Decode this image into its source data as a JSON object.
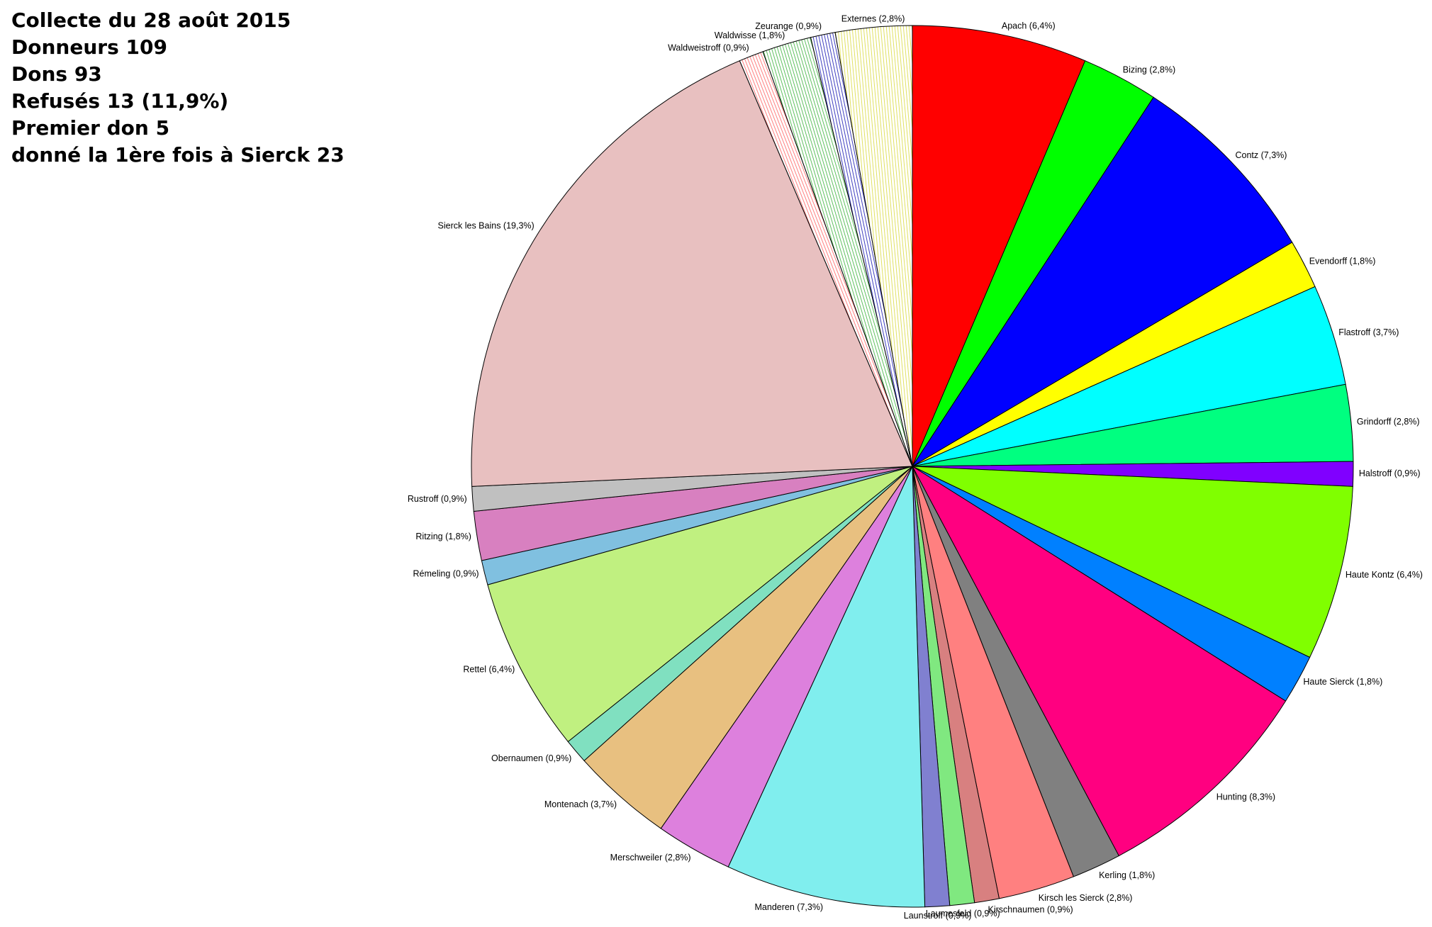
{
  "stats": {
    "line1": "Collecte du 28 août 2015",
    "line2": "Donneurs 109",
    "line3": "Dons 93",
    "line4": "Refusés 13 (11,9%)",
    "line5": "Premier don 5",
    "line6": "donné la 1ère fois à Sierck 23"
  },
  "chart_data": {
    "type": "pie",
    "title": "",
    "start": "12 o'clock",
    "direction": "clockwise",
    "slices": [
      {
        "label": "Apach (6,4%)",
        "value": 6.4,
        "color": "#ff0000",
        "pattern": "solid"
      },
      {
        "label": "Bizing (2,8%)",
        "value": 2.8,
        "color": "#00ff00",
        "pattern": "solid"
      },
      {
        "label": "Contz (7,3%)",
        "value": 7.3,
        "color": "#0000ff",
        "pattern": "solid"
      },
      {
        "label": "Evendorff (1,8%)",
        "value": 1.8,
        "color": "#ffff00",
        "pattern": "solid"
      },
      {
        "label": "Flastroff (3,7%)",
        "value": 3.7,
        "color": "#00ffff",
        "pattern": "solid"
      },
      {
        "label": "Grindorff (2,8%)",
        "value": 2.8,
        "color": "#00ff80",
        "pattern": "solid"
      },
      {
        "label": "Halstroff (0,9%)",
        "value": 0.9,
        "color": "#8000ff",
        "pattern": "solid"
      },
      {
        "label": "Haute Kontz (6,4%)",
        "value": 6.4,
        "color": "#80ff00",
        "pattern": "solid"
      },
      {
        "label": "Haute Sierck (1,8%)",
        "value": 1.8,
        "color": "#0080ff",
        "pattern": "solid"
      },
      {
        "label": "Hunting (8,3%)",
        "value": 8.3,
        "color": "#ff0080",
        "pattern": "solid"
      },
      {
        "label": "Kerling (1,8%)",
        "value": 1.8,
        "color": "#808080",
        "pattern": "solid"
      },
      {
        "label": "Kirsch les Sierck (2,8%)",
        "value": 2.8,
        "color": "#ff8080",
        "pattern": "solid"
      },
      {
        "label": "Kirschnaumen (0,9%)",
        "value": 0.9,
        "color": "#d88080",
        "pattern": "solid"
      },
      {
        "label": "Laumesfeld (0,9%)",
        "value": 0.9,
        "color": "#80e880",
        "pattern": "solid"
      },
      {
        "label": "Launstroff (0,9%)",
        "value": 0.9,
        "color": "#8080d0",
        "pattern": "solid"
      },
      {
        "label": "Manderen (7,3%)",
        "value": 7.3,
        "color": "#80eeee",
        "pattern": "solid"
      },
      {
        "label": "Merschweiler (2,8%)",
        "value": 2.8,
        "color": "#dd80dd",
        "pattern": "solid"
      },
      {
        "label": "Montenach (3,7%)",
        "value": 3.7,
        "color": "#e8c080",
        "pattern": "solid"
      },
      {
        "label": "Obernaumen (0,9%)",
        "value": 0.9,
        "color": "#80e0c0",
        "pattern": "solid"
      },
      {
        "label": "Rettel (6,4%)",
        "value": 6.4,
        "color": "#c0f080",
        "pattern": "solid"
      },
      {
        "label": "Rémeling (0,9%)",
        "value": 0.9,
        "color": "#80c0e0",
        "pattern": "solid"
      },
      {
        "label": "Ritzing (1,8%)",
        "value": 1.8,
        "color": "#d880c0",
        "pattern": "solid"
      },
      {
        "label": "Rustroff (0,9%)",
        "value": 0.9,
        "color": "#c0c0c0",
        "pattern": "solid"
      },
      {
        "label": "Sierck les Bains (19,3%)",
        "value": 19.3,
        "color": "#e8c0c0",
        "pattern": "solid"
      },
      {
        "label": "Waldweistroff (0,9%)",
        "value": 0.9,
        "color": "#ff8080",
        "pattern": "hatched"
      },
      {
        "label": "Waldwisse (1,8%)",
        "value": 1.8,
        "color": "#60c060",
        "pattern": "hatched"
      },
      {
        "label": "Zeurange (0,9%)",
        "value": 0.9,
        "color": "#4040c0",
        "pattern": "hatched"
      },
      {
        "label": "Externes (2,8%)",
        "value": 2.8,
        "color": "#e0e060",
        "pattern": "hatched"
      }
    ]
  }
}
